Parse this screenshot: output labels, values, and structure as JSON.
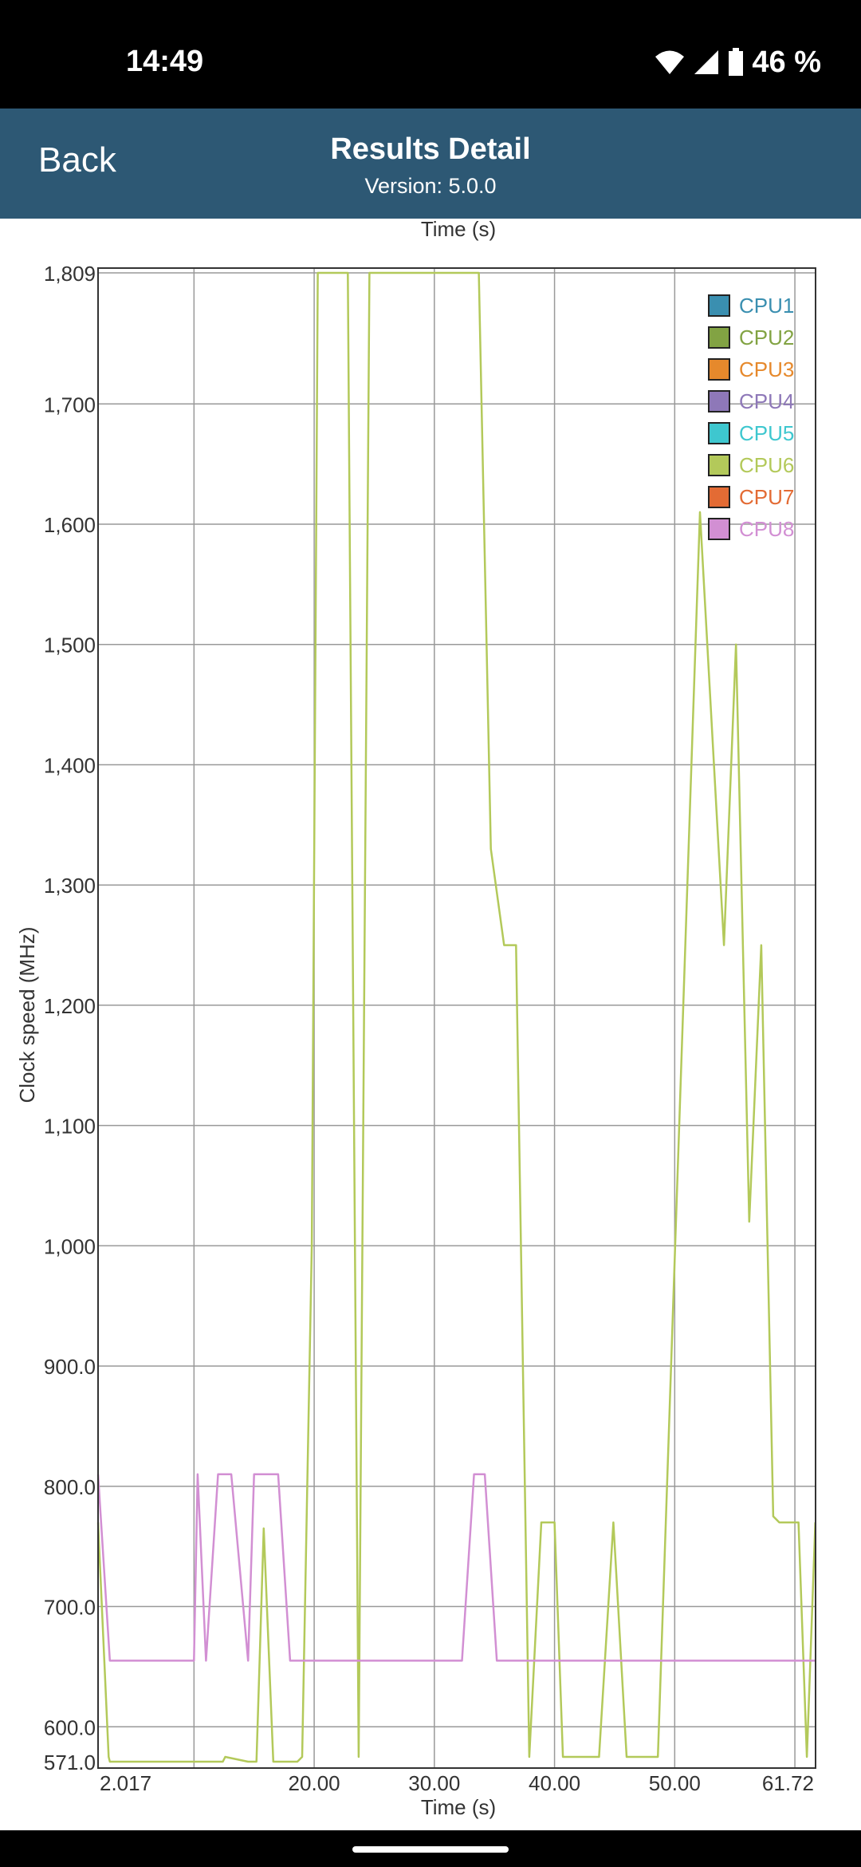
{
  "status_bar": {
    "time": "14:49",
    "battery_text": "46 %",
    "icons": [
      "wifi-icon",
      "signal-icon",
      "battery-icon"
    ]
  },
  "app_bar": {
    "back_label": "Back",
    "title": "Results Detail",
    "subtitle": "Version: 5.0.0"
  },
  "chart_data": {
    "type": "line",
    "title": "",
    "top_label": "Time (s)",
    "xlabel": "Time (s)",
    "ylabel": "Clock speed (MHz)",
    "xlim": [
      2.017,
      61.72
    ],
    "ylim": [
      571,
      1809
    ],
    "x_ticks": [
      {
        "value": 2.017,
        "label": "2.017"
      },
      {
        "value": 20,
        "label": "20.00"
      },
      {
        "value": 30,
        "label": "30.00"
      },
      {
        "value": 40,
        "label": "40.00"
      },
      {
        "value": 50,
        "label": "50.00"
      },
      {
        "value": 61.72,
        "label": "61.72"
      }
    ],
    "x_grid": [
      10,
      20,
      30,
      40,
      50,
      60
    ],
    "y_ticks": [
      {
        "value": 571,
        "label": "571.0"
      },
      {
        "value": 600,
        "label": "600.0"
      },
      {
        "value": 700,
        "label": "700.0"
      },
      {
        "value": 800,
        "label": "800.0"
      },
      {
        "value": 900,
        "label": "900.0"
      },
      {
        "value": 1000,
        "label": "1,000"
      },
      {
        "value": 1100,
        "label": "1,100"
      },
      {
        "value": 1200,
        "label": "1,200"
      },
      {
        "value": 1300,
        "label": "1,300"
      },
      {
        "value": 1400,
        "label": "1,400"
      },
      {
        "value": 1500,
        "label": "1,500"
      },
      {
        "value": 1600,
        "label": "1,600"
      },
      {
        "value": 1700,
        "label": "1,700"
      },
      {
        "value": 1809,
        "label": "1,809"
      }
    ],
    "grid": true,
    "legend_position": "top-right",
    "series": [
      {
        "name": "CPU1",
        "color": "#3a8fb0",
        "values": []
      },
      {
        "name": "CPU2",
        "color": "#82a343",
        "values": []
      },
      {
        "name": "CPU3",
        "color": "#e6892c",
        "values": []
      },
      {
        "name": "CPU4",
        "color": "#8e78b8",
        "values": []
      },
      {
        "name": "CPU5",
        "color": "#3ec7cf",
        "values": []
      },
      {
        "name": "CPU6",
        "color": "#b3c95a",
        "x": [
          2.0,
          2.9,
          3.0,
          12.4,
          12.6,
          14.5,
          15.2,
          15.8,
          16.6,
          18.6,
          19.0,
          19.8,
          20.3,
          22.8,
          23.7,
          24.6,
          33.7,
          34.7,
          35.8,
          36.8,
          37.9,
          38.9,
          40.0,
          40.7,
          43.7,
          44.9,
          46.0,
          48.6,
          52.1,
          54.1,
          55.1,
          56.2,
          57.2,
          58.2,
          58.7,
          60.3,
          61.0,
          61.7
        ],
        "y": [
          770,
          575,
          571,
          571,
          575,
          571,
          571,
          765,
          571,
          571,
          575,
          1000,
          1809,
          1809,
          575,
          1809,
          1809,
          1330,
          1250,
          1250,
          575,
          770,
          770,
          575,
          575,
          770,
          575,
          575,
          1610,
          1250,
          1500,
          1020,
          1250,
          775,
          770,
          770,
          575,
          770
        ]
      },
      {
        "name": "CPU7",
        "color": "#e36b34",
        "values": []
      },
      {
        "name": "CPU8",
        "color": "#d28fd3",
        "x": [
          2.0,
          3.0,
          10.0,
          10.3,
          11.0,
          12.0,
          13.1,
          14.5,
          15.0,
          17.0,
          18.0,
          32.3,
          33.3,
          34.2,
          35.2,
          61.7
        ],
        "y": [
          810,
          655,
          655,
          810,
          655,
          810,
          810,
          655,
          810,
          810,
          655,
          655,
          810,
          810,
          655,
          655
        ]
      }
    ]
  }
}
